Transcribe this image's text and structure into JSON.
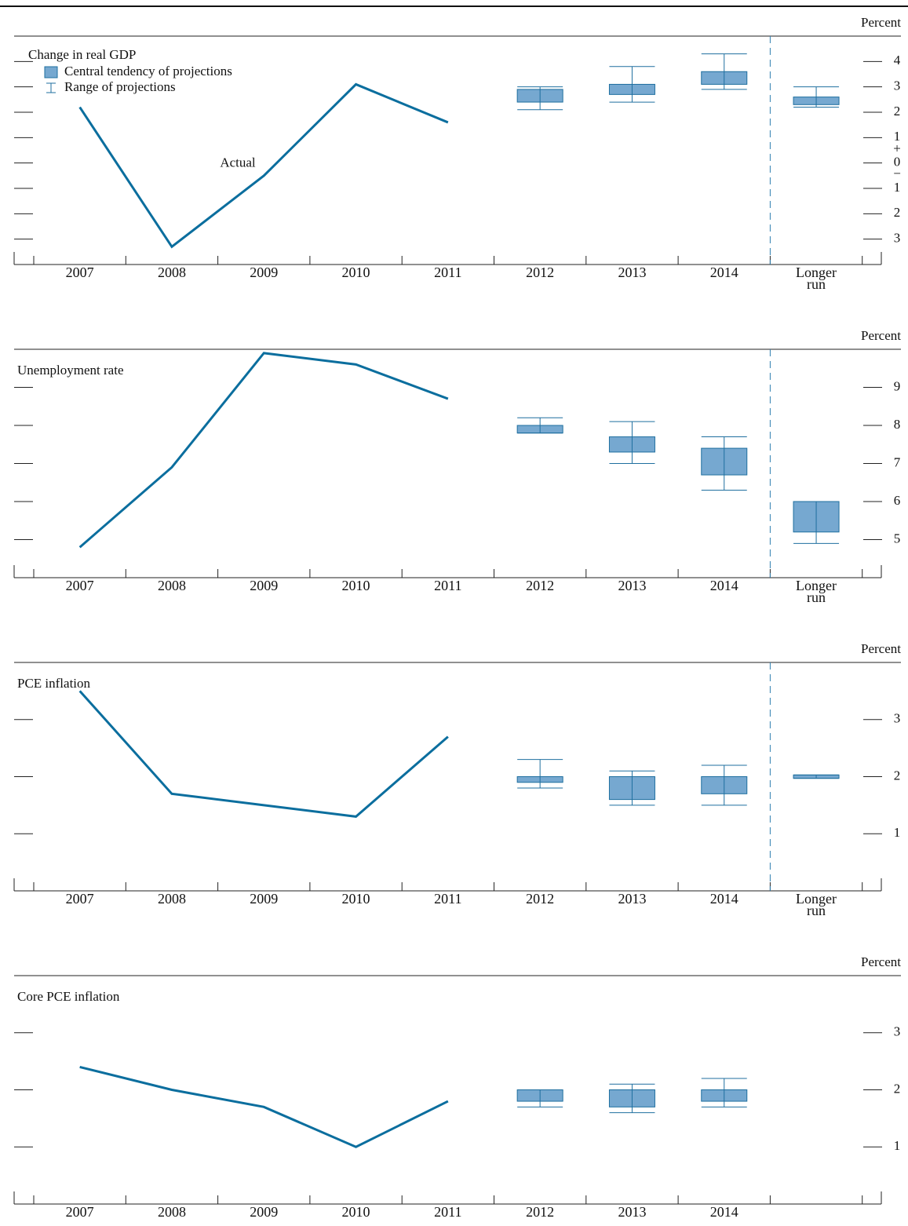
{
  "chart_data": [
    {
      "type": "projection",
      "title": "Change in real GDP",
      "unit": "Percent",
      "categories": [
        "2007",
        "2008",
        "2009",
        "2010",
        "2011",
        "2012",
        "2013",
        "2014",
        "Longer run"
      ],
      "values": [
        2.2,
        -3.3,
        -0.5,
        3.1,
        1.6,
        null,
        null,
        null,
        null
      ],
      "color": "#0b6e9e",
      "annotation": "Actual",
      "box_low": [
        null,
        null,
        null,
        null,
        null,
        2.4,
        2.7,
        3.1,
        2.3
      ],
      "box_high": [
        null,
        null,
        null,
        null,
        null,
        2.9,
        3.1,
        3.6,
        2.6
      ],
      "range_low": [
        null,
        null,
        null,
        null,
        null,
        2.1,
        2.4,
        2.9,
        2.2
      ],
      "range_high": [
        null,
        null,
        null,
        null,
        null,
        3.0,
        3.8,
        4.3,
        3.0
      ],
      "box_color": "#76a8d0",
      "legend": [
        "Central tendency of projections",
        "Range of projections"
      ],
      "ylim": [
        -4,
        5
      ],
      "yticks": [
        4,
        3,
        2,
        1,
        0,
        {
          "value": -1,
          "label": "1"
        },
        {
          "value": -2,
          "label": "2"
        },
        {
          "value": -3,
          "label": "3"
        }
      ],
      "zero_signs": [
        "+",
        "−"
      ],
      "divider": true
    },
    {
      "type": "projection",
      "title": "Unemployment rate",
      "unit": "Percent",
      "categories": [
        "2007",
        "2008",
        "2009",
        "2010",
        "2011",
        "2012",
        "2013",
        "2014",
        "Longer run"
      ],
      "values": [
        4.8,
        6.9,
        9.9,
        9.6,
        8.7,
        null,
        null,
        null,
        null
      ],
      "color": "#0b6e9e",
      "box_low": [
        null,
        null,
        null,
        null,
        null,
        7.8,
        7.3,
        6.7,
        5.2
      ],
      "box_high": [
        null,
        null,
        null,
        null,
        null,
        8.0,
        7.7,
        7.4,
        6.0
      ],
      "range_low": [
        null,
        null,
        null,
        null,
        null,
        7.8,
        7.0,
        6.3,
        4.9
      ],
      "range_high": [
        null,
        null,
        null,
        null,
        null,
        8.2,
        8.1,
        7.7,
        6.0
      ],
      "box_color": "#76a8d0",
      "ylim": [
        4,
        10
      ],
      "yticks": [
        9,
        8,
        7,
        6,
        5
      ],
      "divider": true
    },
    {
      "type": "projection",
      "title": "PCE inflation",
      "unit": "Percent",
      "categories": [
        "2007",
        "2008",
        "2009",
        "2010",
        "2011",
        "2012",
        "2013",
        "2014",
        "Longer run"
      ],
      "values": [
        3.5,
        1.7,
        1.5,
        1.3,
        2.7,
        null,
        null,
        null,
        null
      ],
      "color": "#0b6e9e",
      "box_low": [
        null,
        null,
        null,
        null,
        null,
        1.9,
        1.6,
        1.7,
        1.97
      ],
      "box_high": [
        null,
        null,
        null,
        null,
        null,
        2.0,
        2.0,
        2.0,
        2.03
      ],
      "range_low": [
        null,
        null,
        null,
        null,
        null,
        1.8,
        1.5,
        1.5,
        1.97
      ],
      "range_high": [
        null,
        null,
        null,
        null,
        null,
        2.3,
        2.1,
        2.2,
        2.03
      ],
      "box_color": "#76a8d0",
      "ylim": [
        0,
        4
      ],
      "yticks": [
        3,
        2,
        1
      ],
      "divider": true
    },
    {
      "type": "projection",
      "title": "Core PCE inflation",
      "unit": "Percent",
      "categories": [
        "2007",
        "2008",
        "2009",
        "2010",
        "2011",
        "2012",
        "2013",
        "2014",
        null
      ],
      "values": [
        2.4,
        2.0,
        1.7,
        1.0,
        1.8,
        null,
        null,
        null,
        null
      ],
      "color": "#0b6e9e",
      "box_low": [
        null,
        null,
        null,
        null,
        null,
        1.8,
        1.7,
        1.8,
        null
      ],
      "box_high": [
        null,
        null,
        null,
        null,
        null,
        2.0,
        2.0,
        2.0,
        null
      ],
      "range_low": [
        null,
        null,
        null,
        null,
        null,
        1.7,
        1.6,
        1.7,
        null
      ],
      "range_high": [
        null,
        null,
        null,
        null,
        null,
        2.0,
        2.1,
        2.2,
        null
      ],
      "box_color": "#76a8d0",
      "ylim": [
        0,
        4
      ],
      "yticks": [
        3,
        2,
        1
      ],
      "divider": false
    }
  ]
}
